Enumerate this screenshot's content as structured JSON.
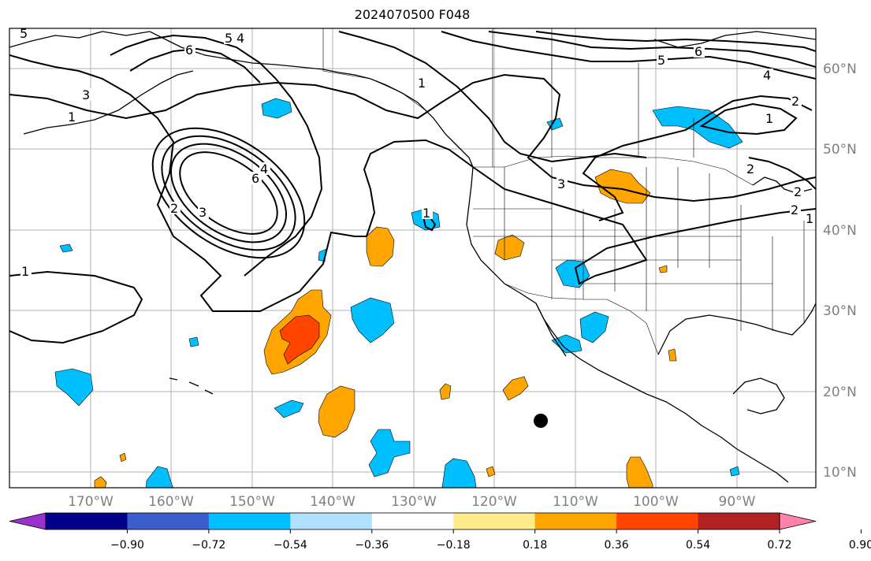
{
  "title": "2024070500 F048",
  "map": {
    "lon_labels": [
      "170°W",
      "160°W",
      "150°W",
      "140°W",
      "130°W",
      "120°W",
      "110°W",
      "100°W",
      "90°W"
    ],
    "lat_labels": [
      "60°N",
      "50°N",
      "40°N",
      "30°N",
      "20°N",
      "10°N"
    ],
    "contour_labels": [
      "5",
      "6",
      "5",
      "4",
      "3",
      "1",
      "1",
      "2",
      "3",
      "4",
      "6",
      "1",
      "1",
      "3",
      "5",
      "6",
      "4",
      "2",
      "1",
      "2",
      "2",
      "2",
      "1"
    ],
    "marker": "storm-center-dot"
  },
  "colorbar": {
    "colors": [
      "#9932cc",
      "#00008b",
      "#3a5fcd",
      "#00bfff",
      "#b0e2ff",
      "#ffffff",
      "#ffec8b",
      "#ffa500",
      "#ff4500",
      "#b22222",
      "#ff82ab"
    ],
    "ticks": [
      "−0.90",
      "−0.72",
      "−0.54",
      "−0.36",
      "−0.18",
      "0.18",
      "0.36",
      "0.54",
      "0.72",
      "0.90"
    ]
  }
}
